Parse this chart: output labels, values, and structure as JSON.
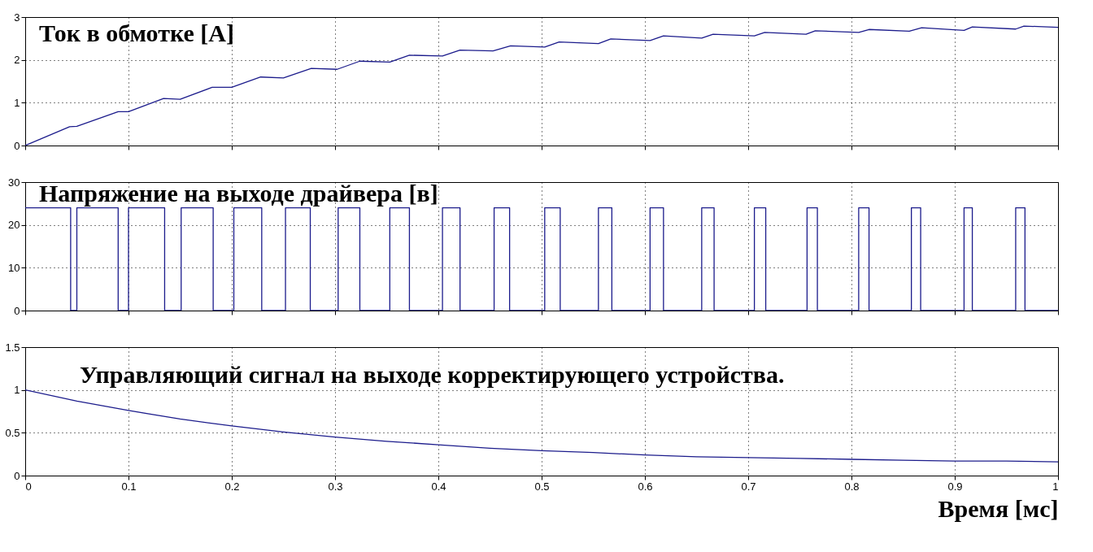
{
  "chart_data": [
    {
      "type": "line",
      "title": "Ток в обмотке [А]",
      "color": "#1c1c8c",
      "grid": true,
      "tick_labels": "y",
      "xlim": [
        0,
        1
      ],
      "xticks": [
        0,
        0.1,
        0.2,
        0.3,
        0.4,
        0.5,
        0.6,
        0.7,
        0.8,
        0.9,
        1
      ],
      "ylim": [
        0,
        3
      ],
      "yticks": [
        0,
        1,
        2,
        3
      ],
      "x": [
        0,
        0.043,
        0.05,
        0.09,
        0.1,
        0.134,
        0.15,
        0.181,
        0.2,
        0.228,
        0.25,
        0.277,
        0.302,
        0.324,
        0.353,
        0.372,
        0.404,
        0.421,
        0.453,
        0.47,
        0.503,
        0.517,
        0.555,
        0.567,
        0.605,
        0.618,
        0.655,
        0.666,
        0.706,
        0.716,
        0.756,
        0.765,
        0.807,
        0.817,
        0.856,
        0.868,
        0.909,
        0.917,
        0.959,
        0.967,
        1
      ],
      "values": [
        0,
        0.44,
        0.45,
        0.79,
        0.79,
        1.1,
        1.08,
        1.36,
        1.36,
        1.6,
        1.58,
        1.8,
        1.78,
        1.97,
        1.95,
        2.11,
        2.09,
        2.23,
        2.21,
        2.33,
        2.3,
        2.42,
        2.38,
        2.49,
        2.45,
        2.56,
        2.51,
        2.6,
        2.56,
        2.64,
        2.6,
        2.68,
        2.64,
        2.71,
        2.67,
        2.75,
        2.69,
        2.77,
        2.72,
        2.79,
        2.76
      ]
    },
    {
      "type": "step",
      "title": "Напряжение на выходе драйвера [в]",
      "color": "#1c1c8c",
      "grid": true,
      "tick_labels": "y",
      "xlim": [
        0,
        1
      ],
      "xticks": [
        0,
        0.1,
        0.2,
        0.3,
        0.4,
        0.5,
        0.6,
        0.7,
        0.8,
        0.9,
        1
      ],
      "ylim": [
        0,
        30
      ],
      "yticks": [
        0,
        10,
        20,
        30
      ],
      "x": [
        0,
        0.044,
        0.05,
        0.09,
        0.1,
        0.135,
        0.151,
        0.182,
        0.202,
        0.229,
        0.252,
        0.276,
        0.303,
        0.324,
        0.353,
        0.372,
        0.404,
        0.421,
        0.454,
        0.469,
        0.503,
        0.518,
        0.555,
        0.568,
        0.605,
        0.618,
        0.655,
        0.667,
        0.706,
        0.717,
        0.757,
        0.767,
        0.807,
        0.817,
        0.858,
        0.867,
        0.909,
        0.917,
        0.959,
        0.968,
        1
      ],
      "values": [
        24,
        0,
        24,
        0,
        24,
        0,
        24,
        0,
        24,
        0,
        24,
        0,
        24,
        0,
        24,
        0,
        24,
        0,
        24,
        0,
        24,
        0,
        24,
        0,
        24,
        0,
        24,
        0,
        24,
        0,
        24,
        0,
        24,
        0,
        24,
        0,
        24,
        0,
        24,
        0,
        0
      ]
    },
    {
      "type": "line",
      "title": "Управляющий сигнал на выходе корректирующего устройства.",
      "xlabel": "Время [мс]",
      "color": "#1c1c8c",
      "grid": true,
      "xlim": [
        0,
        1
      ],
      "xticks": [
        0,
        0.1,
        0.2,
        0.3,
        0.4,
        0.5,
        0.6,
        0.7,
        0.8,
        0.9,
        1
      ],
      "ylim": [
        0,
        1.5
      ],
      "yticks": [
        0,
        0.5,
        1,
        1.5
      ],
      "x": [
        0,
        0.05,
        0.1,
        0.15,
        0.2,
        0.25,
        0.3,
        0.35,
        0.4,
        0.45,
        0.5,
        0.55,
        0.6,
        0.65,
        0.7,
        0.75,
        0.8,
        0.85,
        0.9,
        0.95,
        1
      ],
      "values": [
        1.0,
        0.87,
        0.76,
        0.66,
        0.58,
        0.51,
        0.45,
        0.4,
        0.36,
        0.32,
        0.29,
        0.27,
        0.24,
        0.22,
        0.21,
        0.2,
        0.19,
        0.18,
        0.17,
        0.17,
        0.16
      ]
    }
  ]
}
